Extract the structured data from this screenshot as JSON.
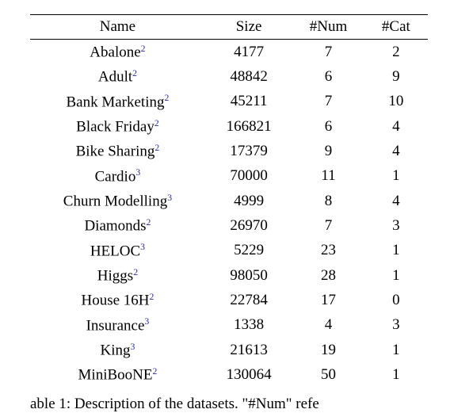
{
  "table": {
    "columns": [
      "Name",
      "Size",
      "#Num",
      "#Cat"
    ],
    "rows": [
      {
        "name": "Abalone",
        "ref": "2",
        "size": "4177",
        "num": "7",
        "cat": "2"
      },
      {
        "name": "Adult",
        "ref": "2",
        "size": "48842",
        "num": "6",
        "cat": "9"
      },
      {
        "name": "Bank Marketing",
        "ref": "2",
        "size": "45211",
        "num": "7",
        "cat": "10"
      },
      {
        "name": "Black Friday",
        "ref": "2",
        "size": "166821",
        "num": "6",
        "cat": "4"
      },
      {
        "name": "Bike Sharing",
        "ref": "2",
        "size": "17379",
        "num": "9",
        "cat": "4"
      },
      {
        "name": "Cardio",
        "ref": "3",
        "size": "70000",
        "num": "11",
        "cat": "1"
      },
      {
        "name": "Churn Modelling",
        "ref": "3",
        "size": "4999",
        "num": "8",
        "cat": "4"
      },
      {
        "name": "Diamonds",
        "ref": "2",
        "size": "26970",
        "num": "7",
        "cat": "3"
      },
      {
        "name": "HELOC",
        "ref": "3",
        "size": "5229",
        "num": "23",
        "cat": "1"
      },
      {
        "name": "Higgs",
        "ref": "2",
        "size": "98050",
        "num": "28",
        "cat": "1"
      },
      {
        "name": "House 16H",
        "ref": "2",
        "size": "22784",
        "num": "17",
        "cat": "0"
      },
      {
        "name": "Insurance",
        "ref": "3",
        "size": "1338",
        "num": "4",
        "cat": "3"
      },
      {
        "name": "King",
        "ref": "3",
        "size": "21613",
        "num": "19",
        "cat": "1"
      },
      {
        "name": "MiniBooNE",
        "ref": "2",
        "size": "130064",
        "num": "50",
        "cat": "1"
      }
    ],
    "caption_prefix": "able 1:  Description of the datasets.   \"#Num\" refe",
    "text_color": "#000000",
    "ref_color": "#2a2aab",
    "background_color": "#ffffff",
    "font_family": "Times New Roman",
    "font_size_pt": 14
  }
}
